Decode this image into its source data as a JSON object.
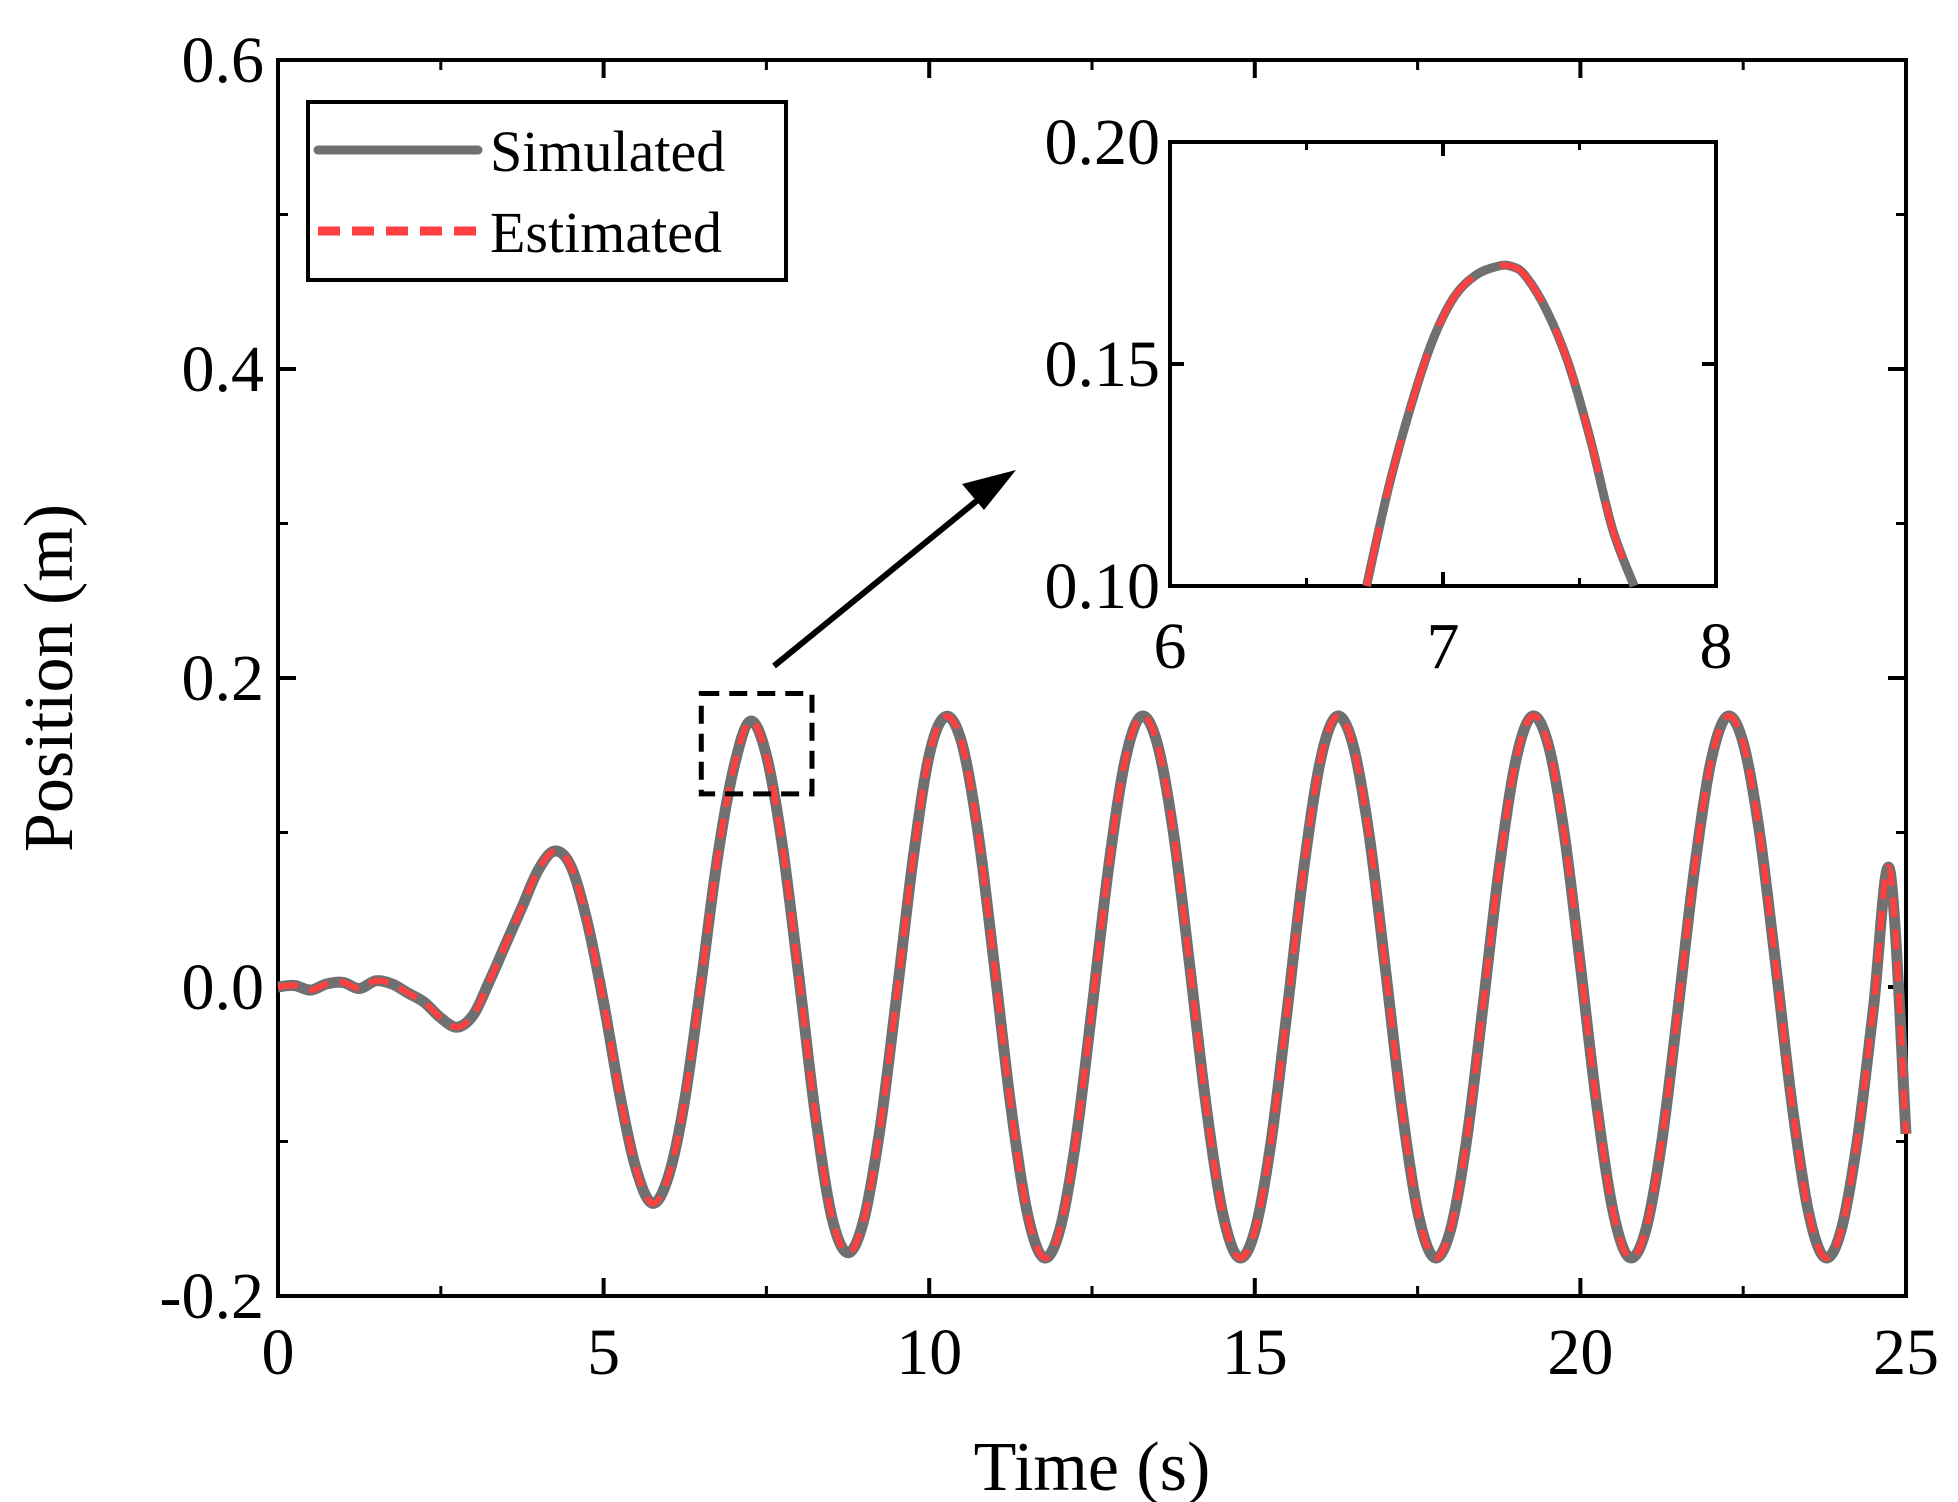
{
  "chart_data": {
    "type": "line",
    "title": "",
    "xlabel": "Time (s)",
    "ylabel": "Position (m)",
    "xlim": [
      0,
      25
    ],
    "ylim": [
      -0.2,
      0.6
    ],
    "x_ticks": [
      0,
      5,
      10,
      15,
      20,
      25
    ],
    "x_tick_labels": [
      "0",
      "5",
      "10",
      "15",
      "20",
      "25"
    ],
    "y_ticks": [
      -0.2,
      0.0,
      0.2,
      0.4,
      0.6
    ],
    "y_tick_labels": [
      "-0.2",
      "0.0",
      "0.2",
      "0.4",
      "0.6"
    ],
    "legend": {
      "position": "top-left",
      "entries": [
        {
          "label": "Simulated",
          "color": "#707070",
          "style": "solid"
        },
        {
          "label": "Estimated",
          "color": "#ff4040",
          "style": "dashed"
        }
      ]
    },
    "series": [
      {
        "name": "Simulated",
        "color": "#707070",
        "x": [
          0,
          0.25,
          0.5,
          0.75,
          1,
          1.25,
          1.5,
          1.75,
          2,
          2.25,
          2.5,
          2.75,
          3,
          3.25,
          3.5,
          3.75,
          4,
          4.25,
          4.5,
          4.75,
          5,
          5.25,
          5.5,
          5.75,
          6,
          6.25,
          6.5,
          6.75,
          7,
          7.25,
          7.5,
          7.75,
          8,
          8.25,
          8.5,
          8.75,
          9,
          9.25,
          9.5,
          9.75,
          10,
          10.25,
          10.5,
          10.75,
          11,
          11.25,
          11.5,
          11.75,
          12,
          12.25,
          12.5,
          12.75,
          13,
          13.25,
          13.5,
          13.75,
          14,
          14.25,
          14.5,
          14.75,
          15,
          15.25,
          15.5,
          15.75,
          16,
          16.25,
          16.5,
          16.75,
          17,
          17.25,
          17.5,
          17.75,
          18,
          18.25,
          18.5,
          18.75,
          19,
          19.25,
          19.5,
          19.75,
          20,
          20.25,
          20.5,
          20.75,
          21,
          21.25,
          21.5,
          21.75,
          22,
          22.25,
          22.5,
          22.75,
          23,
          23.25,
          23.5,
          23.75,
          24,
          24.25,
          24.5,
          24.75,
          25
        ],
        "y": [
          0,
          0.001,
          -0.002,
          0.002,
          0.003,
          -0.001,
          0.004,
          0.002,
          -0.004,
          -0.01,
          -0.02,
          -0.026,
          -0.018,
          0.004,
          0.028,
          0.052,
          0.076,
          0.088,
          0.078,
          0.042,
          -0.01,
          -0.07,
          -0.118,
          -0.14,
          -0.122,
          -0.072,
          0.004,
          0.084,
          0.142,
          0.172,
          0.15,
          0.09,
          0.006,
          -0.082,
          -0.148,
          -0.172,
          -0.15,
          -0.09,
          -0.006,
          0.082,
          0.15,
          0.175,
          0.158,
          0.1,
          0.014,
          -0.076,
          -0.145,
          -0.175,
          -0.158,
          -0.1,
          -0.014,
          0.076,
          0.145,
          0.175,
          0.158,
          0.1,
          0.014,
          -0.076,
          -0.145,
          -0.175,
          -0.158,
          -0.1,
          -0.014,
          0.076,
          0.145,
          0.175,
          0.158,
          0.1,
          0.014,
          -0.076,
          -0.145,
          -0.175,
          -0.158,
          -0.1,
          -0.014,
          0.076,
          0.145,
          0.175,
          0.158,
          0.1,
          0.014,
          -0.076,
          -0.145,
          -0.175,
          -0.158,
          -0.1,
          -0.014,
          0.076,
          0.145,
          0.175,
          0.158,
          0.1,
          0.014,
          -0.076,
          -0.145,
          -0.175,
          -0.158,
          -0.1,
          -0.014,
          0.076,
          -0.095
        ]
      },
      {
        "name": "Estimated",
        "color": "#ff4040",
        "x": [
          0,
          0.25,
          0.5,
          0.75,
          1,
          1.25,
          1.5,
          1.75,
          2,
          2.25,
          2.5,
          2.75,
          3,
          3.25,
          3.5,
          3.75,
          4,
          4.25,
          4.5,
          4.75,
          5,
          5.25,
          5.5,
          5.75,
          6,
          6.25,
          6.5,
          6.75,
          7,
          7.25,
          7.5,
          7.75,
          8,
          8.25,
          8.5,
          8.75,
          9,
          9.25,
          9.5,
          9.75,
          10,
          10.25,
          10.5,
          10.75,
          11,
          11.25,
          11.5,
          11.75,
          12,
          12.25,
          12.5,
          12.75,
          13,
          13.25,
          13.5,
          13.75,
          14,
          14.25,
          14.5,
          14.75,
          15,
          15.25,
          15.5,
          15.75,
          16,
          16.25,
          16.5,
          16.75,
          17,
          17.25,
          17.5,
          17.75,
          18,
          18.25,
          18.5,
          18.75,
          19,
          19.25,
          19.5,
          19.75,
          20,
          20.25,
          20.5,
          20.75,
          21,
          21.25,
          21.5,
          21.75,
          22,
          22.25,
          22.5,
          22.75,
          23,
          23.25,
          23.5,
          23.75,
          24,
          24.25,
          24.5,
          24.75,
          25
        ],
        "y": [
          0,
          0.001,
          -0.002,
          0.002,
          0.003,
          -0.001,
          0.004,
          0.002,
          -0.004,
          -0.01,
          -0.02,
          -0.026,
          -0.018,
          0.004,
          0.028,
          0.052,
          0.076,
          0.088,
          0.078,
          0.042,
          -0.01,
          -0.07,
          -0.118,
          -0.14,
          -0.122,
          -0.072,
          0.004,
          0.084,
          0.142,
          0.172,
          0.15,
          0.09,
          0.006,
          -0.082,
          -0.148,
          -0.172,
          -0.15,
          -0.09,
          -0.006,
          0.082,
          0.15,
          0.175,
          0.158,
          0.1,
          0.014,
          -0.076,
          -0.145,
          -0.175,
          -0.158,
          -0.1,
          -0.014,
          0.076,
          0.145,
          0.175,
          0.158,
          0.1,
          0.014,
          -0.076,
          -0.145,
          -0.175,
          -0.158,
          -0.1,
          -0.014,
          0.076,
          0.145,
          0.175,
          0.158,
          0.1,
          0.014,
          -0.076,
          -0.145,
          -0.175,
          -0.158,
          -0.1,
          -0.014,
          0.076,
          0.145,
          0.175,
          0.158,
          0.1,
          0.014,
          -0.076,
          -0.145,
          -0.175,
          -0.158,
          -0.1,
          -0.014,
          0.076,
          0.145,
          0.175,
          0.158,
          0.1,
          0.014,
          -0.076,
          -0.145,
          -0.175,
          -0.158,
          -0.1,
          -0.014,
          0.076,
          -0.095
        ]
      }
    ],
    "zoom_box": {
      "xlim": [
        6.5,
        8.2
      ],
      "ylim": [
        0.125,
        0.19
      ]
    },
    "inset": {
      "xlim": [
        6,
        8
      ],
      "ylim": [
        0.1,
        0.2
      ],
      "x_ticks": [
        6,
        7,
        8
      ],
      "x_tick_labels": [
        "6",
        "7",
        "8"
      ],
      "y_ticks": [
        0.1,
        0.15,
        0.2
      ],
      "y_tick_labels": [
        "0.10",
        "0.15",
        "0.20"
      ],
      "x": [
        6.72,
        6.8,
        6.88,
        6.96,
        7.04,
        7.12,
        7.2,
        7.25,
        7.3,
        7.38,
        7.46,
        7.54,
        7.62,
        7.7
      ],
      "y": [
        0.1,
        0.122,
        0.14,
        0.155,
        0.165,
        0.17,
        0.172,
        0.172,
        0.17,
        0.162,
        0.15,
        0.133,
        0.113,
        0.1
      ]
    }
  }
}
